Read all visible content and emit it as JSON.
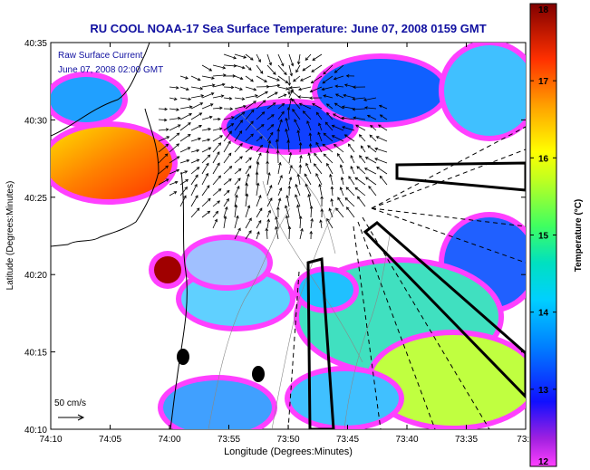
{
  "chart_data": {
    "type": "heatmap",
    "title": "RU COOL  NOAA-17  Sea Surface Temperature:  June 07, 2008 0159 GMT",
    "overlay_label": "Raw Surface Current",
    "overlay_timestamp": "June 07, 2008 02:00 GMT",
    "xlabel": "Longitude (Degrees:Minutes)",
    "ylabel": "Latitude (Degrees:Minutes)",
    "x_ticks": [
      "74:10",
      "74:05",
      "74:00",
      "73:55",
      "73:50",
      "73:45",
      "73:40",
      "73:35",
      "73:3"
    ],
    "y_ticks": [
      "40:35",
      "40:30",
      "40:25",
      "40:20",
      "40:15",
      "40:10"
    ],
    "xlim": [
      "74:10",
      "73:30"
    ],
    "ylim": [
      "40:10",
      "40:35"
    ],
    "scale_label": "50 cm/s",
    "colorbar": {
      "label": "Temperature (°C)",
      "range": [
        12,
        18
      ],
      "ticks": [
        "18",
        "17",
        "16",
        "15",
        "14",
        "13",
        "12"
      ],
      "colors": [
        "#ff40ff",
        "#8020c0",
        "#0020ff",
        "#00a0ff",
        "#00e0e0",
        "#40ff80",
        "#c0ff20",
        "#ffff00",
        "#ffa000",
        "#ff4000",
        "#c00000",
        "#800000"
      ]
    },
    "legend_position": "none",
    "grid": false
  }
}
